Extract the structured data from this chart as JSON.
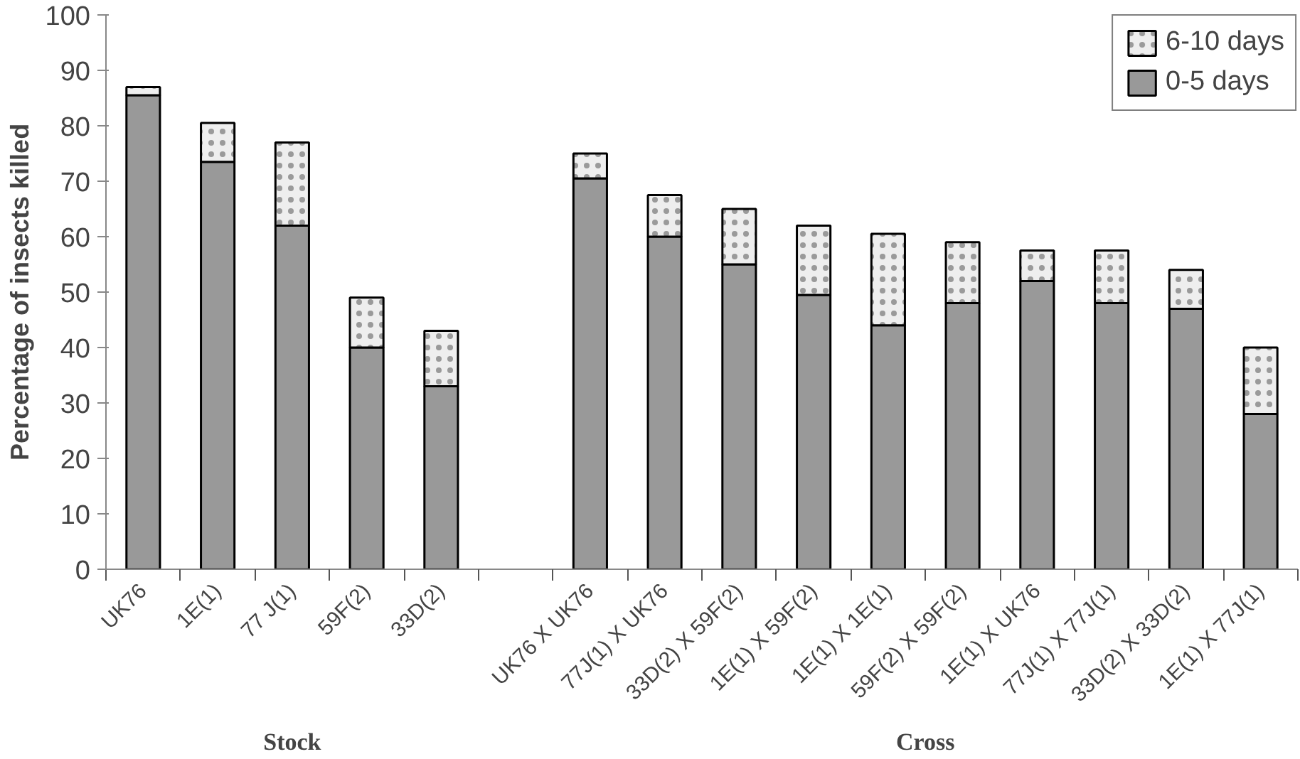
{
  "chart_data": {
    "type": "bar",
    "stacked": true,
    "ylabel": "Percentage of insects killed",
    "categories": [
      "UK76",
      "1E(1)",
      "77 J(1)",
      "59F(2)",
      "33D(2)",
      null,
      "UK76 X UK76",
      "77J(1) X UK76",
      "33D(2) X 59F(2)",
      "1E(1) X 59F(2)",
      "1E(1) X 1E(1)",
      "59F(2) X 59F(2)",
      "1E(1) X UK76",
      "77J(1) X 77J(1)",
      "33D(2) X 33D(2)",
      "1E(1) X 77J(1)"
    ],
    "series": [
      {
        "name": "0-5 days",
        "color": "#999999",
        "values": [
          85.5,
          73.5,
          62,
          40,
          33,
          null,
          70.5,
          60,
          55,
          49.5,
          44,
          48,
          52,
          48,
          47,
          28
        ]
      },
      {
        "name": "6-10 days",
        "color": "#eeeeee",
        "values": [
          1.5,
          7,
          15,
          9,
          10,
          null,
          4.5,
          7.5,
          10,
          12.5,
          16.5,
          11,
          5.5,
          9.5,
          7,
          12
        ]
      }
    ],
    "ylim": [
      0,
      100
    ],
    "yticks": [
      0,
      10,
      20,
      30,
      40,
      50,
      60,
      70,
      80,
      90,
      100
    ],
    "grid": false,
    "legend": "top right",
    "annotations": [
      "Stock",
      "Cross"
    ]
  }
}
